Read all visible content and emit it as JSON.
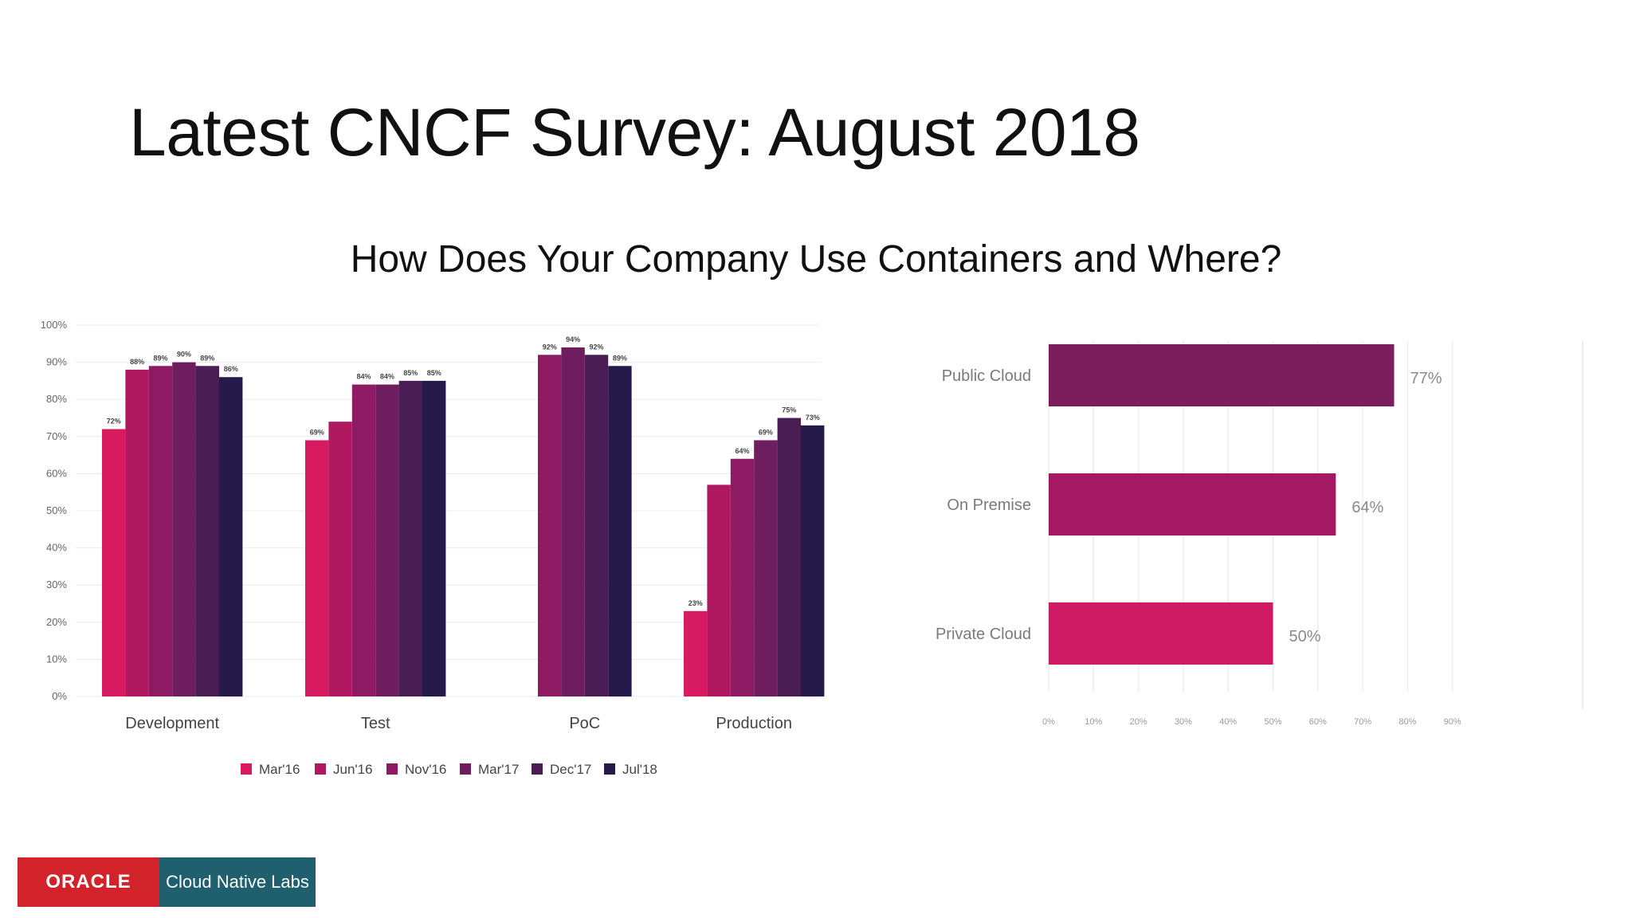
{
  "slide": {
    "title": "Latest CNCF Survey: August 2018",
    "question": "How Does Your Company Use Containers and Where?"
  },
  "logo": {
    "brand": "ORACLE",
    "product": "Cloud Native Labs"
  },
  "colors": {
    "mar16": "#d81b60",
    "jun16": "#b0195f",
    "nov16": "#8e1a63",
    "mar17": "#6e1d5e",
    "dec17": "#4a1d55",
    "jul18": "#261a4a",
    "public_cloud": "#7c1d5d",
    "on_premise": "#a51963",
    "private_cloud": "#ce1b63"
  },
  "chart_data": [
    {
      "type": "bar",
      "categories": [
        "Development",
        "Test",
        "PoC",
        "Production"
      ],
      "series": [
        {
          "name": "Mar'16",
          "values": [
            72,
            69,
            null,
            23
          ]
        },
        {
          "name": "Jun'16",
          "values": [
            88,
            74,
            null,
            57
          ]
        },
        {
          "name": "Nov'16",
          "values": [
            89,
            84,
            92,
            64
          ]
        },
        {
          "name": "Mar'17",
          "values": [
            90,
            84,
            94,
            69
          ]
        },
        {
          "name": "Dec'17",
          "values": [
            89,
            85,
            92,
            75
          ]
        },
        {
          "name": "Jul'18",
          "values": [
            86,
            85,
            89,
            73
          ]
        }
      ],
      "data_labels": [
        [
          "72%",
          "88%",
          "89%",
          "90%",
          "89%",
          "86%"
        ],
        [
          "69%",
          "",
          "84%",
          "84%",
          "85%",
          "85%"
        ],
        [
          "",
          "",
          "92%",
          "94%",
          "92%",
          "89%"
        ],
        [
          "23%",
          "",
          "64%",
          "69%",
          "75%",
          "73%"
        ]
      ],
      "yticks": [
        "0%",
        "10%",
        "20%",
        "30%",
        "40%",
        "50%",
        "60%",
        "70%",
        "80%",
        "90%",
        "100%"
      ],
      "ylim": [
        0,
        100
      ],
      "grid": true,
      "legend_position": "bottom"
    },
    {
      "type": "bar",
      "orientation": "horizontal",
      "categories": [
        "Public Cloud",
        "On Premise",
        "Private Cloud"
      ],
      "values": [
        77,
        64,
        50
      ],
      "value_labels": [
        "77%",
        "64%",
        "50%"
      ],
      "xticks": [
        "0%",
        "10%",
        "20%",
        "30%",
        "40%",
        "50%",
        "60%",
        "70%",
        "80%",
        "90%"
      ],
      "xlim": [
        0,
        90
      ],
      "grid": true
    }
  ]
}
